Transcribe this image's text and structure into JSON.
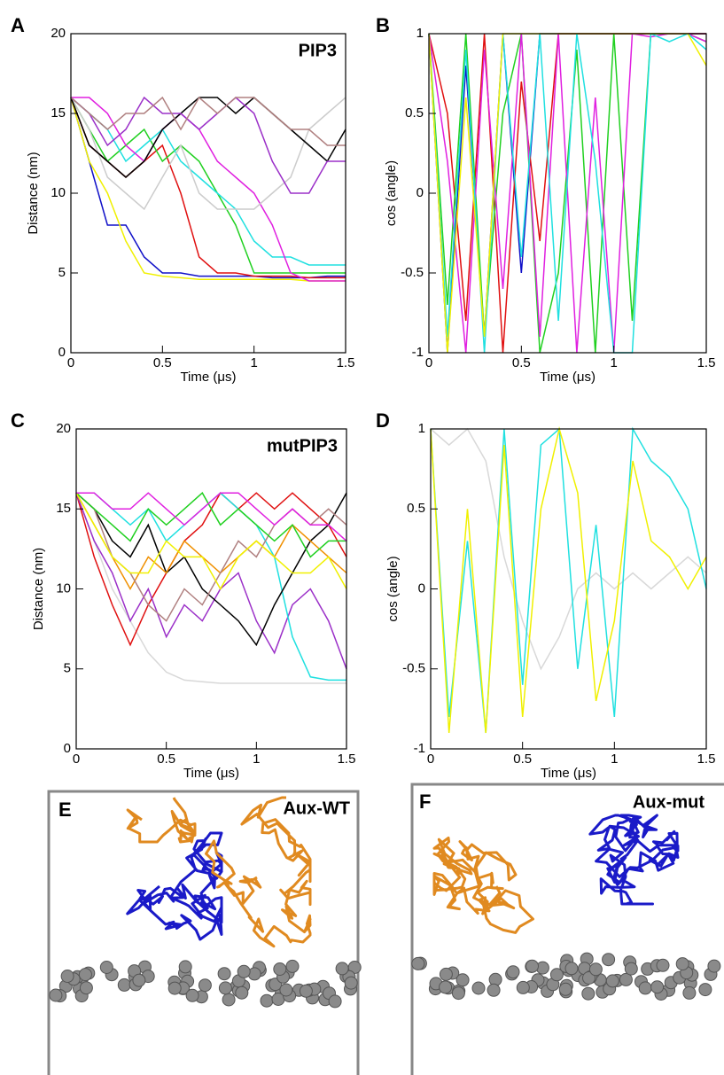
{
  "chart_data": [
    {
      "type": "line",
      "panel": "A",
      "annotation": "PIP3",
      "xlabel": "Time (μs)",
      "ylabel": "Distance (nm)",
      "x": [
        0,
        0.1,
        0.2,
        0.3,
        0.4,
        0.5,
        0.6,
        0.7,
        0.8,
        0.9,
        1,
        1.1,
        1.2,
        1.3,
        1.4,
        1.5
      ],
      "xlim": [
        0,
        1.5
      ],
      "ylim": [
        0,
        20
      ],
      "xticks": [
        0,
        0.5,
        1,
        1.5
      ],
      "yticks": [
        0,
        5,
        10,
        15,
        20
      ],
      "series": [
        {
          "color": "#1010c8",
          "values": [
            16,
            12,
            8,
            8,
            6,
            5,
            5,
            4.8,
            4.8,
            4.8,
            4.8,
            4.7,
            4.7,
            4.7,
            4.8,
            4.8
          ]
        },
        {
          "color": "#f0f000",
          "values": [
            16,
            12,
            10,
            7,
            5,
            4.8,
            4.7,
            4.6,
            4.6,
            4.6,
            4.6,
            4.6,
            4.6,
            4.5,
            4.5,
            4.5
          ]
        },
        {
          "color": "#e01010",
          "values": [
            16,
            13,
            12,
            11,
            12,
            13,
            10,
            6,
            5,
            5,
            4.8,
            4.8,
            4.8,
            4.7,
            4.7,
            4.7
          ]
        },
        {
          "color": "#20d020",
          "values": [
            16,
            14,
            12,
            13,
            14,
            12,
            13,
            12,
            10,
            8,
            5,
            5,
            5,
            5,
            5,
            5
          ]
        },
        {
          "color": "#20e0e0",
          "values": [
            16,
            15,
            14,
            12,
            13,
            14,
            12,
            11,
            10,
            9,
            7,
            6,
            6,
            5.5,
            5.5,
            5.5
          ]
        },
        {
          "color": "#e020e0",
          "values": [
            16,
            16,
            15,
            13,
            12,
            14,
            15,
            14,
            12,
            11,
            10,
            8,
            5,
            4.5,
            4.5,
            4.5
          ]
        },
        {
          "color": "#cccccc",
          "values": [
            16,
            14,
            11,
            10,
            9,
            11,
            13,
            10,
            9,
            9,
            9,
            10,
            11,
            14,
            15,
            16
          ]
        },
        {
          "color": "#000000",
          "values": [
            16,
            13,
            12,
            11,
            12,
            14,
            15,
            16,
            16,
            15,
            16,
            15,
            14,
            13,
            12,
            14
          ]
        },
        {
          "color": "#9b30c8",
          "values": [
            16,
            15,
            13,
            14,
            16,
            15,
            15,
            14,
            15,
            16,
            15,
            12,
            10,
            10,
            12,
            12
          ]
        },
        {
          "color": "#b08080",
          "values": [
            16,
            15,
            14,
            15,
            15,
            16,
            14,
            16,
            15,
            16,
            16,
            15,
            14,
            14,
            13,
            13
          ]
        }
      ]
    },
    {
      "type": "line",
      "panel": "B",
      "xlabel": "Time (μs)",
      "ylabel": "cos (angle)",
      "x": [
        0,
        0.1,
        0.2,
        0.3,
        0.4,
        0.5,
        0.6,
        0.7,
        0.8,
        0.9,
        1,
        1.1,
        1.2,
        1.3,
        1.4,
        1.5
      ],
      "xlim": [
        0,
        1.5
      ],
      "ylim": [
        -1,
        1
      ],
      "xticks": [
        0,
        0.5,
        1,
        1.5
      ],
      "yticks": [
        -1,
        -0.5,
        0,
        0.5,
        1
      ],
      "series": [
        {
          "color": "#1010c8",
          "values": [
            1,
            -1,
            0.8,
            -0.9,
            1,
            -0.5,
            1,
            1,
            1,
            1,
            1,
            1,
            1,
            1,
            1,
            1
          ]
        },
        {
          "color": "#e01010",
          "values": [
            1,
            0.5,
            -0.8,
            1,
            -1,
            0.7,
            -0.3,
            1,
            1,
            1,
            1,
            1,
            1,
            1,
            1,
            1
          ]
        },
        {
          "color": "#20d020",
          "values": [
            1,
            -0.7,
            1,
            -0.9,
            0.5,
            1,
            -1,
            -0.5,
            0.9,
            -1,
            1,
            -0.8,
            1,
            1,
            1,
            0.95
          ]
        },
        {
          "color": "#e020e0",
          "values": [
            1,
            0.2,
            -1,
            0.9,
            -0.6,
            1,
            -0.9,
            1,
            -1,
            0.6,
            -1,
            1,
            0.98,
            1,
            1,
            0.95
          ]
        },
        {
          "color": "#20e0e0",
          "values": [
            1,
            -0.9,
            0.9,
            -1,
            1,
            -0.4,
            1,
            -0.8,
            1,
            0.2,
            -1,
            -1,
            1,
            0.95,
            1,
            0.9
          ]
        },
        {
          "color": "#f0f000",
          "values": [
            1,
            -1,
            0.6,
            -0.9,
            1,
            1,
            1,
            1,
            1,
            1,
            1,
            1,
            1,
            1,
            1,
            0.8
          ]
        }
      ]
    },
    {
      "type": "line",
      "panel": "C",
      "annotation": "mutPIP3",
      "xlabel": "Time (μs)",
      "ylabel": "Distance (nm)",
      "x": [
        0,
        0.1,
        0.2,
        0.3,
        0.4,
        0.5,
        0.6,
        0.7,
        0.8,
        0.9,
        1,
        1.1,
        1.2,
        1.3,
        1.4,
        1.5
      ],
      "xlim": [
        0,
        1.5
      ],
      "ylim": [
        0,
        20
      ],
      "xticks": [
        0,
        0.5,
        1,
        1.5
      ],
      "yticks": [
        0,
        5,
        10,
        15,
        20
      ],
      "series": [
        {
          "color": "#d8d8d8",
          "values": [
            16,
            13,
            10,
            8,
            6,
            4.8,
            4.3,
            4.2,
            4.1,
            4.1,
            4.1,
            4.1,
            4.1,
            4.1,
            4.1,
            4.1
          ]
        },
        {
          "color": "#e01010",
          "values": [
            16,
            12,
            9,
            6.5,
            9,
            11,
            13,
            14,
            16,
            15,
            16,
            15,
            16,
            15,
            14,
            12
          ]
        },
        {
          "color": "#9b30c8",
          "values": [
            16,
            13,
            11,
            8,
            10,
            7,
            9,
            8,
            10,
            11,
            8,
            6,
            9,
            10,
            8,
            5
          ]
        },
        {
          "color": "#20e0e0",
          "values": [
            16,
            16,
            15,
            14,
            15,
            13,
            14,
            15,
            16,
            15,
            14,
            12,
            7,
            4.5,
            4.3,
            4.3
          ]
        },
        {
          "color": "#000000",
          "values": [
            16,
            15,
            13,
            12,
            14,
            11,
            12,
            10,
            9,
            8,
            6.5,
            9,
            11,
            13,
            14,
            16
          ]
        },
        {
          "color": "#f09000",
          "values": [
            16,
            14,
            12,
            10,
            12,
            11,
            13,
            12,
            11,
            12,
            13,
            12,
            14,
            13,
            12,
            11
          ]
        },
        {
          "color": "#b08080",
          "values": [
            16,
            15,
            12,
            11,
            9,
            8,
            10,
            9,
            11,
            13,
            12,
            14,
            15,
            14,
            15,
            14
          ]
        },
        {
          "color": "#20d020",
          "values": [
            16,
            15,
            14,
            13,
            15,
            14,
            15,
            16,
            14,
            15,
            14,
            13,
            14,
            12,
            13,
            13
          ]
        },
        {
          "color": "#f0f000",
          "values": [
            16,
            14,
            12,
            11,
            11,
            13,
            12,
            12,
            10,
            12,
            13,
            12,
            11,
            11,
            12,
            10
          ]
        },
        {
          "color": "#e020e0",
          "values": [
            16,
            16,
            15,
            15,
            16,
            15,
            14,
            15,
            16,
            16,
            15,
            14,
            15,
            14,
            14,
            13
          ]
        }
      ]
    },
    {
      "type": "line",
      "panel": "D",
      "xlabel": "Time (μs)",
      "ylabel": "cos (angle)",
      "x": [
        0,
        0.1,
        0.2,
        0.3,
        0.4,
        0.5,
        0.6,
        0.7,
        0.8,
        0.9,
        1,
        1.1,
        1.2,
        1.3,
        1.4,
        1.5
      ],
      "xlim": [
        0,
        1.5
      ],
      "ylim": [
        -1,
        1
      ],
      "xticks": [
        0,
        0.5,
        1,
        1.5
      ],
      "yticks": [
        -1,
        -0.5,
        0,
        0.5,
        1
      ],
      "series": [
        {
          "color": "#d8d8d8",
          "values": [
            1,
            0.9,
            1,
            0.8,
            0.2,
            -0.2,
            -0.5,
            -0.3,
            0,
            0.1,
            0,
            0.1,
            0,
            0.1,
            0.2,
            0.1
          ]
        },
        {
          "color": "#20e0e0",
          "values": [
            1,
            -0.8,
            0.3,
            -0.9,
            1,
            -0.6,
            0.9,
            1,
            -0.5,
            0.4,
            -0.8,
            1,
            0.8,
            0.7,
            0.5,
            0
          ]
        },
        {
          "color": "#f0f000",
          "values": [
            1,
            -0.9,
            0.5,
            -0.9,
            0.9,
            -0.8,
            0.5,
            1,
            0.6,
            -0.7,
            -0.2,
            0.8,
            0.3,
            0.2,
            0,
            0.2
          ]
        }
      ]
    }
  ],
  "panels": [
    {
      "letter": "E",
      "label": "Aux-WT"
    },
    {
      "letter": "F",
      "label": "Aux-mut"
    }
  ]
}
